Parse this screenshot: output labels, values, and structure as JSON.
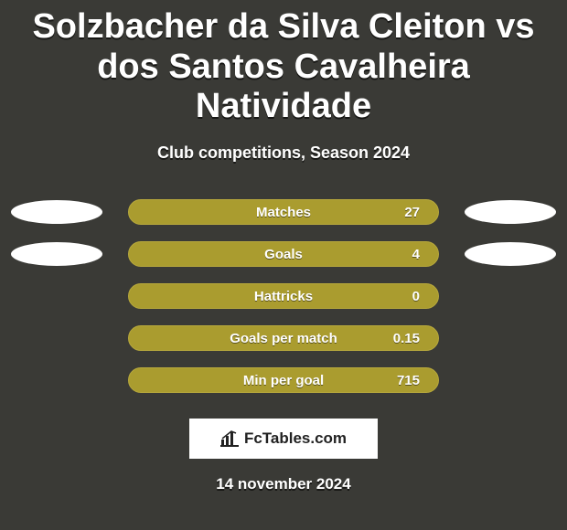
{
  "background_color": "#3a3a36",
  "title": {
    "text": "Solzbacher da Silva Cleiton vs dos Santos Cavalheira Natividade",
    "fontsize": 38,
    "color": "#ffffff",
    "weight": 900
  },
  "subtitle": {
    "text": "Club competitions, Season 2024",
    "fontsize": 18,
    "color": "#ffffff",
    "weight": 700
  },
  "stats": {
    "pill_bg": "#aa9c2f",
    "pill_border": "#b7a83c",
    "label_color": "#ffffff",
    "value_color": "#ffffff",
    "label_fontsize": 15,
    "rows": [
      {
        "label": "Matches",
        "value": "27",
        "show_ovals": true
      },
      {
        "label": "Goals",
        "value": "4",
        "show_ovals": true
      },
      {
        "label": "Hattricks",
        "value": "0",
        "show_ovals": false
      },
      {
        "label": "Goals per match",
        "value": "0.15",
        "show_ovals": false
      },
      {
        "label": "Min per goal",
        "value": "715",
        "show_ovals": false
      }
    ]
  },
  "oval": {
    "width": 100,
    "height": 26,
    "color": "#ffffff"
  },
  "badge": {
    "text": "FcTables.com",
    "text_color": "#222222",
    "bg": "#ffffff",
    "fontsize": 17
  },
  "date": {
    "text": "14 november 2024",
    "fontsize": 17,
    "color": "#ffffff"
  }
}
